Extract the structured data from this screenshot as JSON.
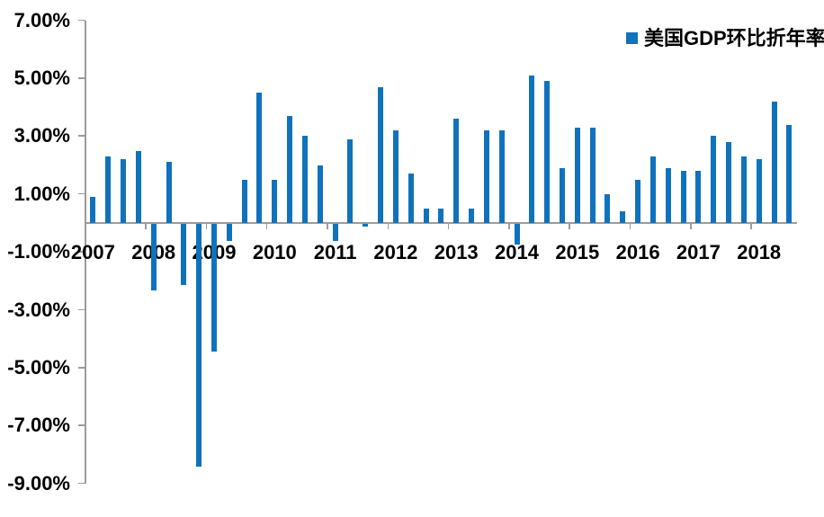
{
  "chart_data": {
    "type": "bar",
    "title": "",
    "xlabel": "",
    "ylabel": "",
    "grid": false,
    "legend_position": "top-right",
    "ylim": [
      -9,
      7
    ],
    "ytick_values": [
      7,
      5,
      3,
      1,
      -1,
      -3,
      -5,
      -7,
      -9
    ],
    "ytick_labels": [
      "7.00%",
      "5.00%",
      "3.00%",
      "1.00%",
      "-1.00%",
      "-3.00%",
      "-5.00%",
      "-7.00%",
      "-9.00%"
    ],
    "x_year_labels": [
      "2007",
      "2008",
      "2009",
      "2010",
      "2011",
      "2012",
      "2013",
      "2014",
      "2015",
      "2016",
      "2017",
      "2018"
    ],
    "categories": [
      "2007Q1",
      "2007Q2",
      "2007Q3",
      "2007Q4",
      "2008Q1",
      "2008Q2",
      "2008Q3",
      "2008Q4",
      "2009Q1",
      "2009Q2",
      "2009Q3",
      "2009Q4",
      "2010Q1",
      "2010Q2",
      "2010Q3",
      "2010Q4",
      "2011Q1",
      "2011Q2",
      "2011Q3",
      "2011Q4",
      "2012Q1",
      "2012Q2",
      "2012Q3",
      "2012Q4",
      "2013Q1",
      "2013Q2",
      "2013Q3",
      "2013Q4",
      "2014Q1",
      "2014Q2",
      "2014Q3",
      "2014Q4",
      "2015Q1",
      "2015Q2",
      "2015Q3",
      "2015Q4",
      "2016Q1",
      "2016Q2",
      "2016Q3",
      "2016Q4",
      "2017Q1",
      "2017Q2",
      "2017Q3",
      "2017Q4",
      "2018Q1",
      "2018Q2",
      "2018Q3"
    ],
    "series": [
      {
        "name": "美国GDP环比折年率",
        "unit": "%",
        "values": [
          0.9,
          2.3,
          2.2,
          2.5,
          -2.3,
          2.1,
          -2.1,
          -8.4,
          -4.4,
          -0.6,
          1.5,
          4.5,
          1.5,
          3.7,
          3.0,
          2.0,
          -0.6,
          2.9,
          -0.1,
          4.7,
          3.2,
          1.7,
          0.5,
          0.5,
          3.6,
          0.5,
          3.2,
          3.2,
          -0.7,
          5.1,
          4.9,
          1.9,
          3.3,
          3.3,
          1.0,
          0.4,
          1.5,
          2.3,
          1.9,
          1.8,
          1.8,
          3.0,
          2.8,
          2.3,
          2.2,
          4.2,
          3.4
        ]
      }
    ]
  },
  "legend": {
    "label": "美国GDP环比折年率"
  },
  "colors": {
    "bar": "#1072BC",
    "axis": "#9B9B9B",
    "text": "#000000",
    "background": "#FFFFFF"
  }
}
